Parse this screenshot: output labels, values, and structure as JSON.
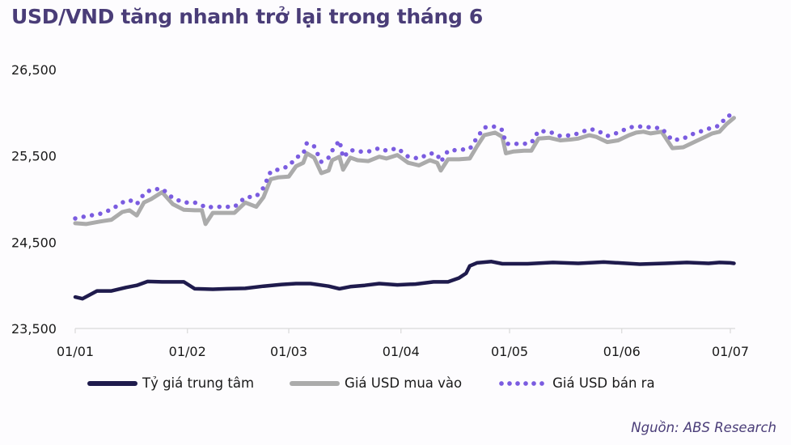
{
  "title": "USD/VND tăng nhanh trở lại trong tháng 6",
  "source": "Nguồn: ABS Research",
  "colors": {
    "title": "#4a3d78",
    "central": "#1f1b4d",
    "buy": "#ababab",
    "sell": "#7b5ce0",
    "axis": "#d9d9d9"
  },
  "legend": [
    {
      "key": "central",
      "label": "Tỷ giá trung tâm"
    },
    {
      "key": "buy",
      "label": "Giá USD mua vào"
    },
    {
      "key": "sell",
      "label": "Giá USD bán ra"
    }
  ],
  "chart_data": {
    "type": "line",
    "title": "USD/VND tăng nhanh trở lại trong tháng 6",
    "xlabel": "",
    "ylabel": "",
    "ylim": [
      23500,
      26500
    ],
    "yticks": [
      23500,
      24500,
      25500,
      26500
    ],
    "ytick_labels": [
      "23,500",
      "24,500",
      "25,500",
      "26,500"
    ],
    "xticks": [
      "01/01",
      "01/02",
      "01/03",
      "01/04",
      "01/05",
      "01/06",
      "01/07"
    ],
    "xtick_day": [
      0,
      31,
      59,
      90,
      120,
      151,
      181
    ],
    "grid": false,
    "legend_position": "bottom",
    "series": [
      {
        "name": "Tỷ giá trung tâm",
        "style": "solid-dark",
        "day": [
          0,
          2,
          6,
          10,
          14,
          17,
          20,
          24,
          27,
          30,
          33,
          38,
          42,
          47,
          52,
          57,
          61,
          65,
          70,
          73,
          76,
          80,
          84,
          89,
          94,
          99,
          103,
          106,
          108,
          109,
          111,
          115,
          118,
          125,
          132,
          139,
          146,
          150,
          156,
          163,
          169,
          175,
          178,
          181,
          182
        ],
        "values": [
          23865,
          23845,
          23935,
          23935,
          23975,
          24000,
          24045,
          24040,
          24040,
          24040,
          23960,
          23955,
          23960,
          23965,
          23990,
          24010,
          24020,
          24020,
          23990,
          23960,
          23985,
          24000,
          24020,
          24005,
          24015,
          24040,
          24040,
          24085,
          24140,
          24225,
          24260,
          24275,
          24250,
          24250,
          24265,
          24255,
          24270,
          24260,
          24245,
          24255,
          24265,
          24255,
          24265,
          24260,
          24255
        ]
      },
      {
        "name": "Giá USD mua vào",
        "style": "solid-gray",
        "day": [
          0,
          3,
          7,
          10,
          13,
          15,
          17,
          19,
          21,
          24,
          27,
          30,
          33,
          35,
          36,
          38,
          41,
          44,
          47,
          50,
          52,
          54,
          56,
          59,
          61,
          63,
          64,
          66,
          68,
          70,
          71,
          73,
          74,
          76,
          78,
          81,
          84,
          86,
          89,
          92,
          95,
          98,
          100,
          101,
          103,
          106,
          109,
          111,
          113,
          116,
          118,
          119,
          121,
          124,
          126,
          128,
          131,
          134,
          137,
          139,
          142,
          144,
          147,
          150,
          153,
          155,
          157,
          159,
          162,
          165,
          168,
          171,
          174,
          176,
          178,
          180,
          182
        ],
        "values": [
          24720,
          24710,
          24740,
          24760,
          24850,
          24870,
          24810,
          24960,
          25000,
          25080,
          24940,
          24875,
          24870,
          24870,
          24710,
          24840,
          24840,
          24840,
          24960,
          24910,
          25020,
          25230,
          25250,
          25260,
          25380,
          25420,
          25530,
          25480,
          25300,
          25330,
          25450,
          25490,
          25340,
          25480,
          25450,
          25440,
          25490,
          25470,
          25510,
          25420,
          25390,
          25450,
          25420,
          25330,
          25460,
          25460,
          25470,
          25610,
          25740,
          25770,
          25720,
          25530,
          25550,
          25560,
          25560,
          25700,
          25710,
          25680,
          25690,
          25700,
          25740,
          25720,
          25660,
          25680,
          25740,
          25770,
          25780,
          25760,
          25780,
          25590,
          25600,
          25660,
          25720,
          25760,
          25780,
          25870,
          25940
        ]
      },
      {
        "name": "Giá USD bán ra",
        "style": "dotted-purple",
        "day": [
          0,
          3,
          7,
          10,
          13,
          15,
          17,
          19,
          21,
          24,
          27,
          30,
          33,
          35,
          36,
          38,
          41,
          44,
          47,
          50,
          52,
          54,
          56,
          59,
          61,
          63,
          64,
          66,
          68,
          70,
          71,
          73,
          74,
          76,
          78,
          81,
          84,
          86,
          89,
          92,
          95,
          98,
          100,
          101,
          103,
          106,
          109,
          111,
          113,
          116,
          118,
          119,
          121,
          124,
          126,
          128,
          131,
          134,
          137,
          139,
          142,
          144,
          147,
          150,
          153,
          155,
          157,
          159,
          162,
          165,
          168,
          171,
          174,
          176,
          178,
          180,
          182
        ],
        "values": [
          24775,
          24800,
          24830,
          24880,
          24960,
          24990,
          24940,
          25060,
          25110,
          25120,
          25010,
          24960,
          24960,
          24930,
          24900,
          24910,
          24910,
          24910,
          25020,
          25030,
          25130,
          25320,
          25340,
          25380,
          25480,
          25520,
          25650,
          25610,
          25430,
          25480,
          25560,
          25680,
          25480,
          25570,
          25550,
          25550,
          25590,
          25560,
          25590,
          25490,
          25470,
          25530,
          25520,
          25430,
          25560,
          25570,
          25580,
          25710,
          25830,
          25840,
          25800,
          25640,
          25640,
          25640,
          25650,
          25790,
          25780,
          25730,
          25740,
          25760,
          25810,
          25800,
          25730,
          25770,
          25830,
          25840,
          25840,
          25830,
          25820,
          25680,
          25700,
          25760,
          25800,
          25830,
          25850,
          25960,
          25980
        ]
      }
    ]
  }
}
